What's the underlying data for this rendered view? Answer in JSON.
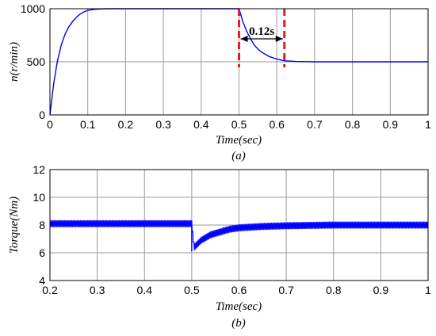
{
  "chart_data": [
    {
      "type": "line",
      "caption": "(a)",
      "xlabel": "Time(sec)",
      "ylabel": "n(r/min)",
      "xlim": [
        0,
        1
      ],
      "ylim": [
        0,
        1000
      ],
      "x_ticks": [
        "0",
        "0.1",
        "0.2",
        "0.3",
        "0.4",
        "0.5",
        "0.6",
        "0.7",
        "0.8",
        "0.9",
        "1"
      ],
      "y_ticks": [
        "0",
        "500",
        "1000"
      ],
      "grid": true,
      "series_color": "#0000ff",
      "series": [
        {
          "x": [
            0,
            0.01,
            0.02,
            0.03,
            0.04,
            0.05,
            0.06,
            0.07,
            0.08,
            0.09,
            0.1,
            0.12,
            0.15,
            0.2,
            0.3,
            0.4,
            0.5,
            0.51,
            0.52,
            0.53,
            0.54,
            0.55,
            0.56,
            0.58,
            0.6,
            0.62,
            0.65,
            0.7,
            0.8,
            0.9,
            1.0
          ],
          "values": [
            0,
            300,
            510,
            660,
            760,
            830,
            880,
            920,
            950,
            970,
            985,
            995,
            1000,
            1000,
            1000,
            1000,
            1000,
            880,
            790,
            720,
            660,
            620,
            590,
            550,
            525,
            510,
            503,
            500,
            500,
            500,
            500
          ]
        }
      ],
      "markers": {
        "color": "#e02020",
        "x": [
          0.5,
          0.62
        ],
        "annotation": "0.12s"
      }
    },
    {
      "type": "line",
      "caption": "(b)",
      "xlabel": "Time(sec)",
      "ylabel": "Torque(Nm)",
      "xlim": [
        0.2,
        1
      ],
      "ylim": [
        4,
        12
      ],
      "x_ticks": [
        "0.2",
        "0.3",
        "0.4",
        "0.5",
        "0.6",
        "0.7",
        "0.8",
        "0.9",
        "1"
      ],
      "y_ticks": [
        "4",
        "6",
        "8",
        "10",
        "12"
      ],
      "grid": true,
      "series_color": "#0000ff",
      "series": [
        {
          "x": [
            0.2,
            0.3,
            0.4,
            0.5,
            0.505,
            0.52,
            0.54,
            0.56,
            0.58,
            0.6,
            0.65,
            0.7,
            0.8,
            0.9,
            1.0
          ],
          "center": [
            8.1,
            8.1,
            8.1,
            8.1,
            6.4,
            6.9,
            7.3,
            7.5,
            7.7,
            7.8,
            7.9,
            7.95,
            8.0,
            8.0,
            8.0
          ],
          "ripple": 0.25
        }
      ]
    }
  ]
}
